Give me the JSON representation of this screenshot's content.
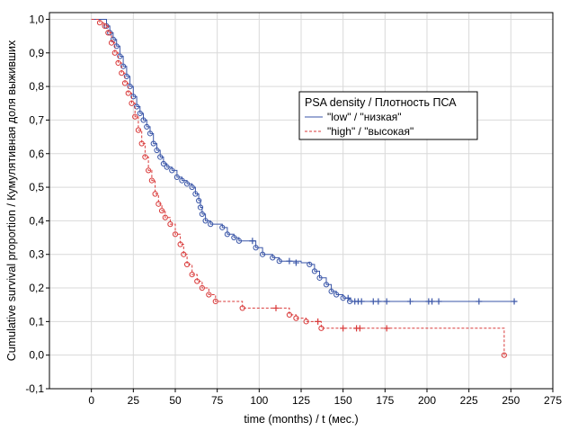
{
  "chart_data": {
    "type": "line",
    "subtype": "kaplan-meier step",
    "xlabel": "time (months) / t (мес.)",
    "ylabel": "Cumulative survival proportion / Кумулятивная доля выживших",
    "xlim": [
      -25,
      275
    ],
    "ylim": [
      -0.1,
      1.02
    ],
    "x_ticks": [
      0,
      25,
      50,
      75,
      100,
      125,
      150,
      175,
      200,
      225,
      250,
      275
    ],
    "x_tick_labels": [
      "0",
      "25",
      "50",
      "75",
      "100",
      "125",
      "150",
      "175",
      "200",
      "225",
      "250",
      "275"
    ],
    "y_ticks": [
      -0.1,
      0.0,
      0.1,
      0.2,
      0.3,
      0.4,
      0.5,
      0.6,
      0.7,
      0.8,
      0.9,
      1.0
    ],
    "y_tick_labels": [
      "-0,1",
      "0,0",
      "0,1",
      "0,2",
      "0,3",
      "0,4",
      "0,5",
      "0,6",
      "0,7",
      "0,8",
      "0,9",
      "1,0"
    ],
    "grid": true,
    "legend": {
      "title": "PSA density / Плотность ПСА",
      "placement": "upper-center-right"
    },
    "series": [
      {
        "name": "\"low\" / \"низкая\"",
        "color": "#3a56a8",
        "line_style": "solid",
        "curve": [
          [
            0,
            1.0
          ],
          [
            8,
            1.0
          ],
          [
            9,
            0.98
          ],
          [
            11,
            0.96
          ],
          [
            13,
            0.94
          ],
          [
            15,
            0.92
          ],
          [
            17,
            0.89
          ],
          [
            19,
            0.86
          ],
          [
            21,
            0.83
          ],
          [
            23,
            0.8
          ],
          [
            25,
            0.77
          ],
          [
            27,
            0.74
          ],
          [
            29,
            0.72
          ],
          [
            31,
            0.7
          ],
          [
            33,
            0.68
          ],
          [
            35,
            0.66
          ],
          [
            37,
            0.63
          ],
          [
            39,
            0.61
          ],
          [
            41,
            0.59
          ],
          [
            43,
            0.57
          ],
          [
            45,
            0.56
          ],
          [
            48,
            0.55
          ],
          [
            51,
            0.53
          ],
          [
            54,
            0.52
          ],
          [
            57,
            0.51
          ],
          [
            60,
            0.5
          ],
          [
            62,
            0.48
          ],
          [
            64,
            0.46
          ],
          [
            65,
            0.44
          ],
          [
            66,
            0.42
          ],
          [
            68,
            0.4
          ],
          [
            71,
            0.39
          ],
          [
            78,
            0.38
          ],
          [
            81,
            0.36
          ],
          [
            85,
            0.35
          ],
          [
            88,
            0.34
          ],
          [
            96,
            0.34
          ],
          [
            98,
            0.32
          ],
          [
            102,
            0.3
          ],
          [
            108,
            0.29
          ],
          [
            112,
            0.28
          ],
          [
            118,
            0.28
          ],
          [
            125,
            0.275
          ],
          [
            130,
            0.27
          ],
          [
            133,
            0.25
          ],
          [
            136,
            0.23
          ],
          [
            140,
            0.21
          ],
          [
            143,
            0.19
          ],
          [
            146,
            0.18
          ],
          [
            150,
            0.17
          ],
          [
            154,
            0.16
          ],
          [
            252,
            0.16
          ]
        ],
        "event_markers": [
          [
            9,
            0.98
          ],
          [
            11,
            0.96
          ],
          [
            13,
            0.94
          ],
          [
            15,
            0.92
          ],
          [
            17,
            0.89
          ],
          [
            19,
            0.86
          ],
          [
            21,
            0.83
          ],
          [
            23,
            0.8
          ],
          [
            25,
            0.77
          ],
          [
            27,
            0.74
          ],
          [
            29,
            0.72
          ],
          [
            31,
            0.7
          ],
          [
            33,
            0.68
          ],
          [
            35,
            0.66
          ],
          [
            37,
            0.63
          ],
          [
            39,
            0.61
          ],
          [
            41,
            0.59
          ],
          [
            43,
            0.57
          ],
          [
            45,
            0.56
          ],
          [
            48,
            0.55
          ],
          [
            51,
            0.53
          ],
          [
            54,
            0.52
          ],
          [
            57,
            0.51
          ],
          [
            60,
            0.5
          ],
          [
            62,
            0.48
          ],
          [
            64,
            0.46
          ],
          [
            65,
            0.44
          ],
          [
            66,
            0.42
          ],
          [
            68,
            0.4
          ],
          [
            71,
            0.39
          ],
          [
            78,
            0.38
          ],
          [
            81,
            0.36
          ],
          [
            85,
            0.35
          ],
          [
            88,
            0.34
          ],
          [
            98,
            0.32
          ],
          [
            102,
            0.3
          ],
          [
            108,
            0.29
          ],
          [
            112,
            0.28
          ],
          [
            130,
            0.27
          ],
          [
            133,
            0.25
          ],
          [
            136,
            0.23
          ],
          [
            140,
            0.21
          ],
          [
            143,
            0.19
          ],
          [
            146,
            0.18
          ],
          [
            150,
            0.17
          ],
          [
            154,
            0.16
          ]
        ],
        "censored_markers": [
          [
            96,
            0.34
          ],
          [
            118,
            0.28
          ],
          [
            122,
            0.275
          ],
          [
            153,
            0.17
          ],
          [
            157,
            0.16
          ],
          [
            159,
            0.16
          ],
          [
            161,
            0.16
          ],
          [
            168,
            0.16
          ],
          [
            171,
            0.16
          ],
          [
            176,
            0.16
          ],
          [
            190,
            0.16
          ],
          [
            201,
            0.16
          ],
          [
            203,
            0.16
          ],
          [
            207,
            0.16
          ],
          [
            231,
            0.16
          ],
          [
            252,
            0.16
          ]
        ]
      },
      {
        "name": "\"high\" / \"высокая\"",
        "color": "#d93a3a",
        "line_style": "dashed",
        "curve": [
          [
            0,
            1.0
          ],
          [
            5,
            0.99
          ],
          [
            8,
            0.98
          ],
          [
            10,
            0.96
          ],
          [
            12,
            0.93
          ],
          [
            14,
            0.9
          ],
          [
            16,
            0.87
          ],
          [
            18,
            0.84
          ],
          [
            20,
            0.81
          ],
          [
            22,
            0.78
          ],
          [
            24,
            0.75
          ],
          [
            26,
            0.71
          ],
          [
            28,
            0.67
          ],
          [
            30,
            0.63
          ],
          [
            32,
            0.59
          ],
          [
            34,
            0.55
          ],
          [
            36,
            0.52
          ],
          [
            38,
            0.48
          ],
          [
            40,
            0.45
          ],
          [
            42,
            0.43
          ],
          [
            44,
            0.41
          ],
          [
            47,
            0.39
          ],
          [
            50,
            0.36
          ],
          [
            53,
            0.33
          ],
          [
            55,
            0.3
          ],
          [
            57,
            0.27
          ],
          [
            60,
            0.24
          ],
          [
            63,
            0.22
          ],
          [
            66,
            0.2
          ],
          [
            70,
            0.18
          ],
          [
            74,
            0.16
          ],
          [
            90,
            0.14
          ],
          [
            118,
            0.12
          ],
          [
            122,
            0.11
          ],
          [
            128,
            0.1
          ],
          [
            137,
            0.08
          ],
          [
            246,
            0.08
          ],
          [
            246,
            0.0
          ]
        ],
        "event_markers": [
          [
            5,
            0.99
          ],
          [
            8,
            0.98
          ],
          [
            10,
            0.96
          ],
          [
            12,
            0.93
          ],
          [
            14,
            0.9
          ],
          [
            16,
            0.87
          ],
          [
            18,
            0.84
          ],
          [
            20,
            0.81
          ],
          [
            22,
            0.78
          ],
          [
            24,
            0.75
          ],
          [
            26,
            0.71
          ],
          [
            28,
            0.67
          ],
          [
            30,
            0.63
          ],
          [
            32,
            0.59
          ],
          [
            34,
            0.55
          ],
          [
            36,
            0.52
          ],
          [
            38,
            0.48
          ],
          [
            40,
            0.45
          ],
          [
            42,
            0.43
          ],
          [
            44,
            0.41
          ],
          [
            47,
            0.39
          ],
          [
            50,
            0.36
          ],
          [
            53,
            0.33
          ],
          [
            55,
            0.3
          ],
          [
            57,
            0.27
          ],
          [
            60,
            0.24
          ],
          [
            63,
            0.22
          ],
          [
            66,
            0.2
          ],
          [
            70,
            0.18
          ],
          [
            74,
            0.16
          ],
          [
            90,
            0.14
          ],
          [
            118,
            0.12
          ],
          [
            122,
            0.11
          ],
          [
            128,
            0.1
          ],
          [
            137,
            0.08
          ],
          [
            246,
            0.0
          ]
        ],
        "censored_markers": [
          [
            110,
            0.14
          ],
          [
            135,
            0.1
          ],
          [
            150,
            0.08
          ],
          [
            158,
            0.08
          ],
          [
            160,
            0.08
          ],
          [
            176,
            0.08
          ]
        ]
      }
    ]
  }
}
